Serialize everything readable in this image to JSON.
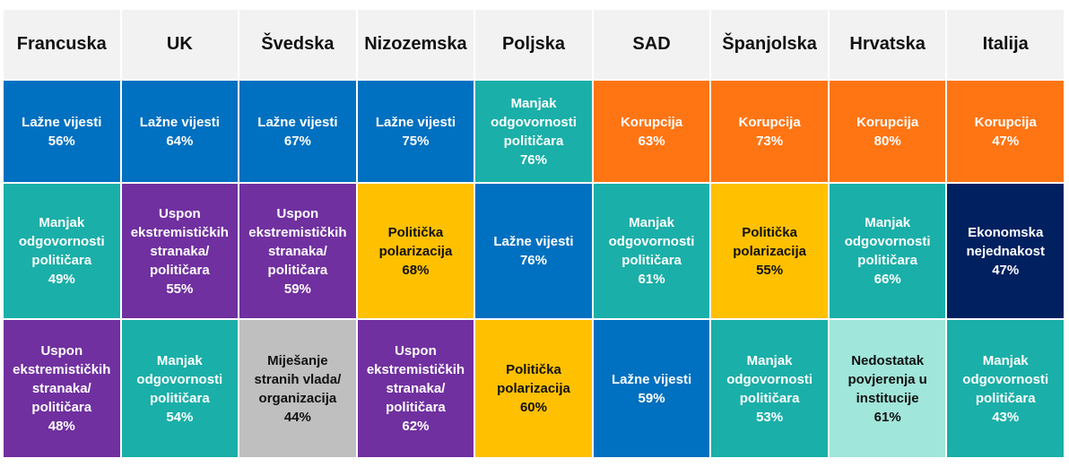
{
  "colors": {
    "fake_news": "#0070C0",
    "accountability": "#1AAFA8",
    "extremism": "#7030A0",
    "corruption": "#FF7514",
    "polarization": "#FFC000",
    "inequality": "#002060",
    "interference": "#BFBFBF",
    "trust": "#A0E6DA"
  },
  "columns": [
    {
      "country": "Francuska",
      "cells": [
        {
          "label": "Lažne vijesti",
          "pct": "56%",
          "cat": "fake_news"
        },
        {
          "label": "Manjak\nodgovornosti\npolitičara",
          "pct": "49%",
          "cat": "accountability"
        },
        {
          "label": "Uspon\nekstremističkih\nstranaka/\npolitičara",
          "pct": "48%",
          "cat": "extremism"
        }
      ]
    },
    {
      "country": "UK",
      "cells": [
        {
          "label": "Lažne vijesti",
          "pct": "64%",
          "cat": "fake_news"
        },
        {
          "label": "Uspon\nekstremističkih\nstranaka/\npolitičara",
          "pct": "55%",
          "cat": "extremism"
        },
        {
          "label": "Manjak\nodgovornosti\npolitičara",
          "pct": "54%",
          "cat": "accountability"
        }
      ]
    },
    {
      "country": "Švedska",
      "cells": [
        {
          "label": "Lažne vijesti",
          "pct": "67%",
          "cat": "fake_news"
        },
        {
          "label": "Uspon\nekstremističkih\nstranaka/\npolitičara",
          "pct": "59%",
          "cat": "extremism"
        },
        {
          "label": "Miješanje\nstranih vlada/\norganizacija",
          "pct": "44%",
          "cat": "interference"
        }
      ]
    },
    {
      "country": "Nizozemska",
      "cells": [
        {
          "label": "Lažne vijesti",
          "pct": "75%",
          "cat": "fake_news"
        },
        {
          "label": "Politička\npolarizacija",
          "pct": "68%",
          "cat": "polarization"
        },
        {
          "label": "Uspon\nekstremističkih\nstranaka/\npolitičara",
          "pct": "62%",
          "cat": "extremism"
        }
      ]
    },
    {
      "country": "Poljska",
      "cells": [
        {
          "label": "Manjak\nodgovornosti\npolitičara",
          "pct": "76%",
          "cat": "accountability"
        },
        {
          "label": "Lažne vijesti",
          "pct": "76%",
          "cat": "fake_news"
        },
        {
          "label": "Politička\npolarizacija",
          "pct": "60%",
          "cat": "polarization"
        }
      ]
    },
    {
      "country": "SAD",
      "cells": [
        {
          "label": "Korupcija",
          "pct": "63%",
          "cat": "corruption"
        },
        {
          "label": "Manjak\nodgovornosti\npolitičara",
          "pct": "61%",
          "cat": "accountability"
        },
        {
          "label": "Lažne vijesti",
          "pct": "59%",
          "cat": "fake_news"
        }
      ]
    },
    {
      "country": "Španjolska",
      "cells": [
        {
          "label": "Korupcija",
          "pct": "73%",
          "cat": "corruption"
        },
        {
          "label": "Politička\npolarizacija",
          "pct": "55%",
          "cat": "polarization"
        },
        {
          "label": "Manjak\nodgovornosti\npolitičara",
          "pct": "53%",
          "cat": "accountability"
        }
      ]
    },
    {
      "country": "Hrvatska",
      "cells": [
        {
          "label": "Korupcija",
          "pct": "80%",
          "cat": "corruption"
        },
        {
          "label": "Manjak\nodgovornosti\npolitičara",
          "pct": "66%",
          "cat": "accountability"
        },
        {
          "label": "Nedostatak\npovjerenja u\ninstitucije",
          "pct": "61%",
          "cat": "trust"
        }
      ]
    },
    {
      "country": "Italija",
      "cells": [
        {
          "label": "Korupcija",
          "pct": "47%",
          "cat": "corruption"
        },
        {
          "label": "Ekonomska\nnejednakost",
          "pct": "47%",
          "cat": "inequality"
        },
        {
          "label": "Manjak\nodgovornosti\npolitičara",
          "pct": "43%",
          "cat": "accountability"
        }
      ]
    }
  ]
}
